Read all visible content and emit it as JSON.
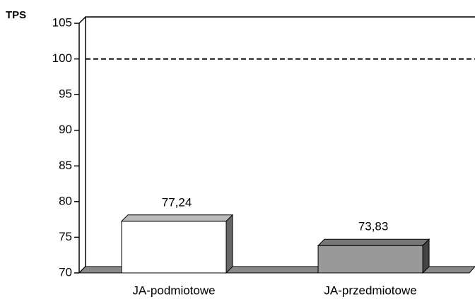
{
  "chart_data": {
    "type": "bar3d",
    "y_label": "TPS",
    "categories": [
      "JA-podmiotowe",
      "JA-przedmiotowe"
    ],
    "values": [
      77.24,
      73.83
    ],
    "value_labels": [
      "77,24",
      "73,83"
    ],
    "colors": [
      "#ffffff",
      "#999999"
    ],
    "ylim": [
      70,
      105
    ],
    "yticks": [
      70,
      75,
      80,
      85,
      90,
      95,
      100,
      105
    ],
    "reference_line": 100
  }
}
